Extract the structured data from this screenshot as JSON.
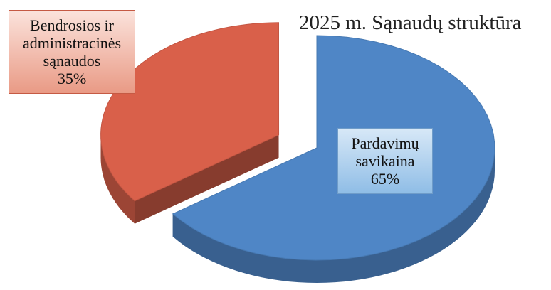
{
  "chart_data": {
    "type": "pie",
    "title": "2025 m. Sąnaudų struktūra",
    "categories": [
      "Pardavimų savikaina",
      "Bendrosios ir administracinės sąnaudos"
    ],
    "values": [
      65,
      35
    ],
    "value_labels": [
      "65%",
      "35%"
    ],
    "colors": [
      "#4f86c6",
      "#d9604a"
    ]
  }
}
